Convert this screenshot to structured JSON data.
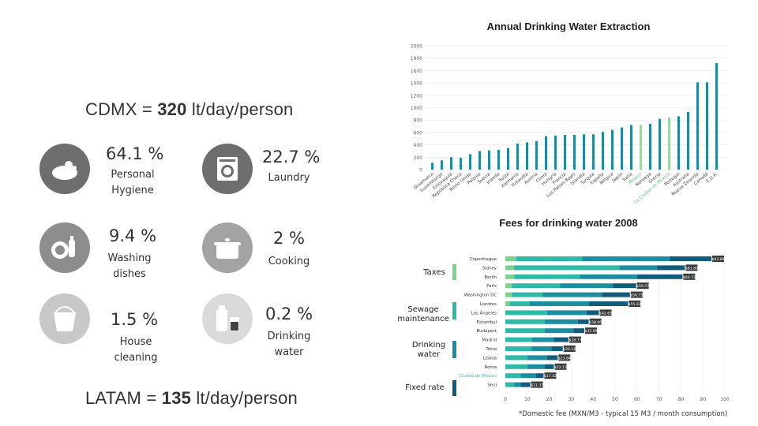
{
  "left": {
    "cdmx": {
      "prefix": "CDMX = ",
      "value": "320",
      "suffix": " lt/day/person"
    },
    "latam": {
      "prefix": "LATAM = ",
      "value": "135",
      "suffix": " lt/day/person"
    },
    "uses": [
      {
        "pct": "64.1 %",
        "label1": "Personal",
        "label2": "Hygiene",
        "icon": "soap-icon",
        "color": "#6e6e6e"
      },
      {
        "pct": "22.7 %",
        "label1": "Laundry",
        "label2": "",
        "icon": "washing-machine-icon",
        "color": "#6e6e6e"
      },
      {
        "pct": "9.4 %",
        "label1": "Washing",
        "label2": "dishes",
        "icon": "dishes-icon",
        "color": "#8d8d8d"
      },
      {
        "pct": "2 %",
        "label1": "Cooking",
        "label2": "",
        "icon": "cooking-pot-icon",
        "color": "#a3a3a3"
      },
      {
        "pct": "1.5 %",
        "label1": "House",
        "label2": "cleaning",
        "icon": "bucket-icon",
        "color": "#c8c8c8"
      },
      {
        "pct": "0.2 %",
        "label1": "Drinking",
        "label2": "water",
        "icon": "drinking-water-icon",
        "color": "#dadada"
      }
    ]
  },
  "chart_data": [
    {
      "type": "bar",
      "title": "Annual Drinking Water Extraction",
      "categories": [
        "Dinamarca",
        "Luxemburgo",
        "Eslovaquia",
        "República Checa",
        "Reino Unido",
        "Polonia",
        "Suecia",
        "Irlanda",
        "Suiza",
        "Alemania",
        "Finlandia",
        "Austria",
        "Corea",
        "Hungría",
        "Francia",
        "Los Países Bajos",
        "Islandia",
        "Turquía",
        "España",
        "Bélgica",
        "Japón",
        "Italia",
        "México",
        "Noruega",
        "Grecia",
        "La Ciudad de México",
        "Portugal",
        "Australia",
        "Nueva Zelanda",
        "Canadá",
        "E.U.A."
      ],
      "values": [
        110,
        150,
        200,
        190,
        250,
        300,
        310,
        320,
        350,
        420,
        440,
        460,
        540,
        550,
        560,
        560,
        570,
        570,
        610,
        640,
        680,
        720,
        720,
        740,
        820,
        840,
        860,
        930,
        1410,
        1410,
        1720
      ],
      "highlight": [
        "México",
        "La Ciudad de México"
      ],
      "ylim": [
        0,
        2000
      ],
      "yticks": [
        "0",
        "200",
        "400",
        "600",
        "800",
        "1000",
        "1200",
        "1400",
        "1600",
        "1800",
        "2000"
      ],
      "grid": true,
      "colors": {
        "bar": "#1f8a9e",
        "highlight": "#9ad6a6",
        "highlight_label": "#6cc08a"
      }
    },
    {
      "type": "bar",
      "orientation": "horizontal",
      "stacked": true,
      "title": "Fees for drinking water 2008",
      "categories": [
        "Copenhague",
        "Sidney",
        "Berlín",
        "París",
        "Washington DC",
        "Londres",
        "Los Ángeles",
        "Estambul",
        "Budapest",
        "Madrid",
        "Tokio",
        "Lisboa",
        "Roma",
        "Ciudad de México",
        "Seúl"
      ],
      "highlight": [
        "Ciudad de México"
      ],
      "value_labels": [
        "$93.89",
        "$81.80",
        "$80.72",
        "$59.57",
        "$56.75",
        "$55.83",
        "$42.65",
        "$38.00",
        "$35.99",
        "$28.77",
        "$26.16",
        "$23.84",
        "$22.12",
        "$17.42",
        "$11.37"
      ],
      "series": [
        {
          "name": "Taxes",
          "values": [
            5,
            4,
            4,
            3,
            3,
            2,
            0,
            0,
            0,
            0,
            0,
            0,
            0,
            0,
            0
          ]
        },
        {
          "name": "Sewage maintenance",
          "values": [
            30,
            48,
            30,
            22,
            14,
            9,
            19,
            18,
            18,
            12,
            12,
            10,
            10,
            7,
            4
          ]
        },
        {
          "name": "Drinking water",
          "values": [
            40,
            17,
            26,
            24,
            27,
            27,
            18,
            15,
            13,
            10,
            9,
            9,
            8,
            7,
            3
          ]
        },
        {
          "name": "Fixed rate",
          "values": [
            18.89,
            12.8,
            20.72,
            10.57,
            12.75,
            17.83,
            5.65,
            5,
            4.99,
            6.77,
            5.16,
            4.84,
            4.12,
            3.42,
            4.37
          ]
        }
      ],
      "legend": [
        "Taxes",
        "Sewage\nmaintenance",
        "Drinking\nwater",
        "Fixed rate"
      ],
      "xlim": [
        0,
        100
      ],
      "xticks": [
        "0",
        "10",
        "20",
        "30",
        "40",
        "50",
        "60",
        "70",
        "80",
        "90",
        "100"
      ],
      "colors": {
        "Taxes": "#7dd18f",
        "Sewage maintenance": "#2fb9a8",
        "Drinking water": "#1b8fa0",
        "Fixed rate": "#115c7a"
      },
      "note": "*Domestic fee (MXN/M3 - typical 15 M3 / month consumption)"
    }
  ]
}
